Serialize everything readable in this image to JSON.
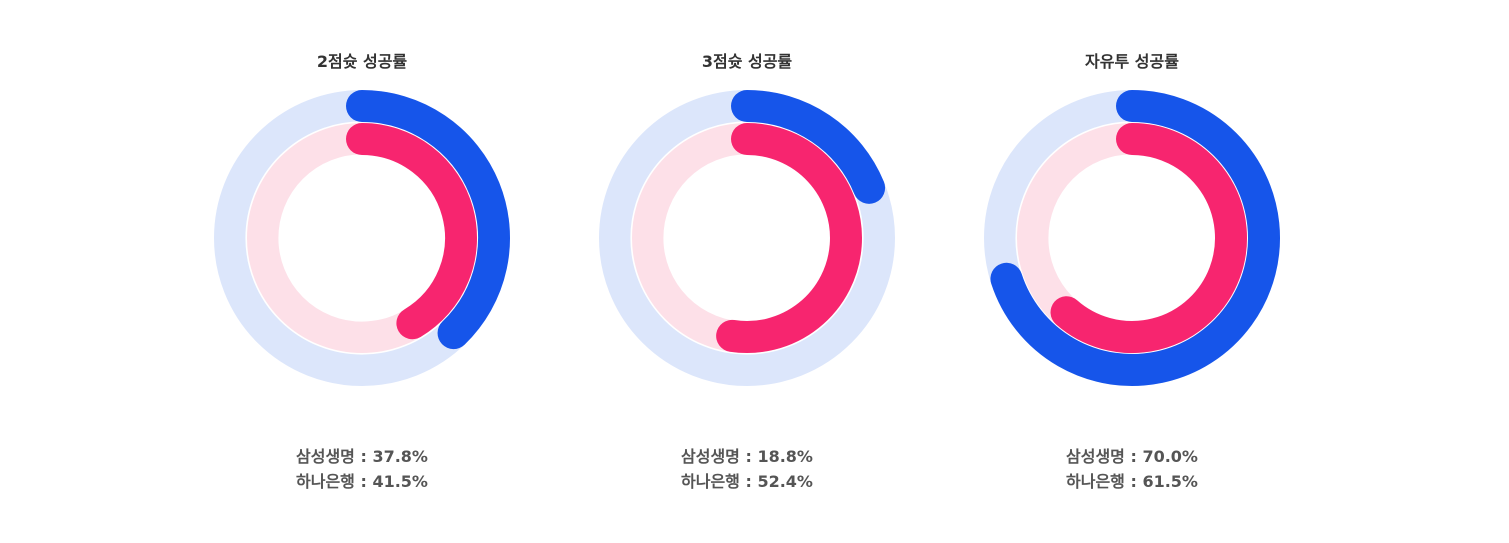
{
  "colors": {
    "samsung": "#1655ea",
    "samsung_track": "#dce6fb",
    "hana": "#f7256f",
    "hana_track": "#fde0e8"
  },
  "chart_data": [
    {
      "type": "radial-bar",
      "title": "2점슛 성공률",
      "series": [
        {
          "name": "삼성생명",
          "value": 37.8
        },
        {
          "name": "하나은행",
          "value": 41.5
        }
      ],
      "max": 100
    },
    {
      "type": "radial-bar",
      "title": "3점슛 성공률",
      "series": [
        {
          "name": "삼성생명",
          "value": 18.8
        },
        {
          "name": "하나은행",
          "value": 52.4
        }
      ],
      "max": 100
    },
    {
      "type": "radial-bar",
      "title": "자유투 성공률",
      "series": [
        {
          "name": "삼성생명",
          "value": 70.0
        },
        {
          "name": "하나은행",
          "value": 61.5
        }
      ],
      "max": 100
    }
  ],
  "legend_sep": " : ",
  "value_labels": [
    [
      "37.8%",
      "41.5%"
    ],
    [
      "18.8%",
      "52.4%"
    ],
    [
      "70.0%",
      "61.5%"
    ]
  ]
}
